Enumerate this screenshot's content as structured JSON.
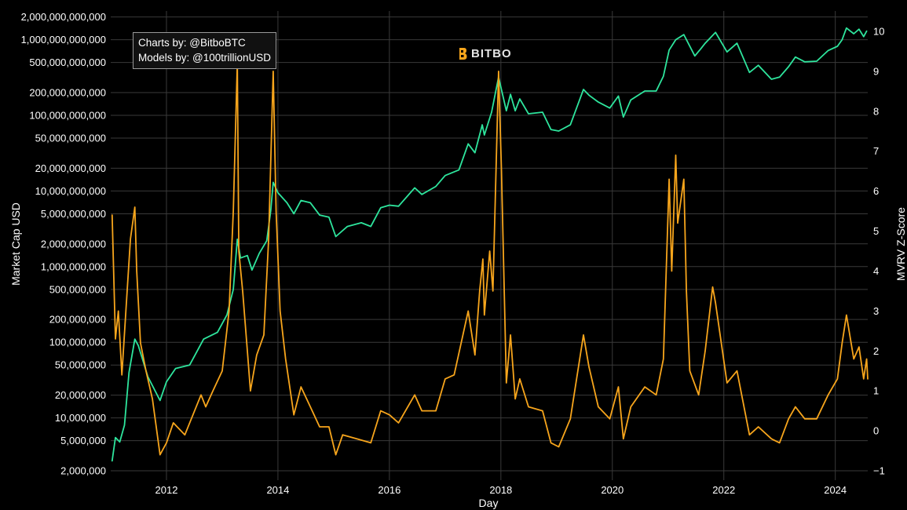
{
  "credits": {
    "line1": "Charts by: @BitboBTC",
    "line2": "Models by: @100trillionUSD"
  },
  "logo": {
    "text": "BITBO",
    "icon": "bitbo-logo-icon"
  },
  "colors": {
    "background": "#000000",
    "market_cap": "#2ee59d",
    "mvrv": "#f7a51c",
    "grid": "#3a3a3a"
  },
  "chart_data": {
    "type": "line",
    "xlabel": "Day",
    "ylabel": "Market Cap USD",
    "y2label": "MVRV Z-Score",
    "x_ticks": [
      "2012",
      "2014",
      "2016",
      "2018",
      "2020",
      "2022",
      "2024"
    ],
    "x_range": [
      "2011-01-01",
      "2024-08-01"
    ],
    "y_scale": "log",
    "y_range": [
      1500000,
      2400000000000
    ],
    "y_ticks": [
      2000000,
      5000000,
      10000000,
      20000000,
      50000000,
      100000000,
      200000000,
      500000000,
      1000000000,
      2000000000,
      5000000000,
      10000000000,
      20000000000,
      50000000000,
      100000000000,
      200000000000,
      500000000000,
      1000000000000,
      2000000000000
    ],
    "y_tick_labels": [
      "2,000,000",
      "5,000,000",
      "10,000,000",
      "20,000,000",
      "50,000,000",
      "100,000,000",
      "200,000,000",
      "500,000,000",
      "1,000,000,000",
      "2,000,000,000",
      "5,000,000,000",
      "10,000,000,000",
      "20,000,000,000",
      "50,000,000,000",
      "100,000,000,000",
      "200,000,000,000",
      "500,000,000,000",
      "1,000,000,000,000",
      "2,000,000,000,000"
    ],
    "y2_range": [
      -1.0,
      10.0
    ],
    "y2_ticks": [
      -1,
      0,
      1,
      2,
      3,
      4,
      5,
      6,
      7,
      8,
      9,
      10
    ],
    "grid": true,
    "series": [
      {
        "axis": "y",
        "color": "#2ee59d",
        "points": [
          [
            "2011-01-10",
            2700000
          ],
          [
            "2011-02-01",
            5500000
          ],
          [
            "2011-03-01",
            4800000
          ],
          [
            "2011-04-01",
            8000000
          ],
          [
            "2011-05-01",
            40000000
          ],
          [
            "2011-06-08",
            110000000
          ],
          [
            "2011-07-01",
            90000000
          ],
          [
            "2011-09-01",
            35000000
          ],
          [
            "2011-11-20",
            17000000
          ],
          [
            "2012-01-01",
            30000000
          ],
          [
            "2012-03-01",
            45000000
          ],
          [
            "2012-06-01",
            50000000
          ],
          [
            "2012-09-01",
            110000000
          ],
          [
            "2012-12-01",
            135000000
          ],
          [
            "2013-02-01",
            230000000
          ],
          [
            "2013-03-15",
            500000000
          ],
          [
            "2013-04-10",
            2300000000
          ],
          [
            "2013-05-01",
            1300000000
          ],
          [
            "2013-06-15",
            1400000000
          ],
          [
            "2013-07-15",
            900000000
          ],
          [
            "2013-09-01",
            1500000000
          ],
          [
            "2013-10-20",
            2200000000
          ],
          [
            "2013-11-15",
            5500000000
          ],
          [
            "2013-12-01",
            13000000000
          ],
          [
            "2014-01-01",
            9500000000
          ],
          [
            "2014-03-01",
            7000000000
          ],
          [
            "2014-04-15",
            5000000000
          ],
          [
            "2014-06-01",
            7500000000
          ],
          [
            "2014-08-01",
            7000000000
          ],
          [
            "2014-10-01",
            4800000000
          ],
          [
            "2014-12-01",
            4500000000
          ],
          [
            "2015-01-15",
            2500000000
          ],
          [
            "2015-04-01",
            3400000000
          ],
          [
            "2015-07-01",
            3800000000
          ],
          [
            "2015-09-01",
            3400000000
          ],
          [
            "2015-11-05",
            6000000000
          ],
          [
            "2016-01-01",
            6500000000
          ],
          [
            "2016-03-01",
            6300000000
          ],
          [
            "2016-06-15",
            11000000000
          ],
          [
            "2016-08-01",
            9000000000
          ],
          [
            "2016-11-01",
            11500000000
          ],
          [
            "2017-01-01",
            16000000000
          ],
          [
            "2017-04-01",
            19000000000
          ],
          [
            "2017-06-01",
            42000000000
          ],
          [
            "2017-07-15",
            32000000000
          ],
          [
            "2017-09-01",
            75000000000
          ],
          [
            "2017-09-15",
            55000000000
          ],
          [
            "2017-11-01",
            110000000000
          ],
          [
            "2017-12-17",
            320000000000
          ],
          [
            "2018-02-06",
            115000000000
          ],
          [
            "2018-03-05",
            190000000000
          ],
          [
            "2018-04-05",
            115000000000
          ],
          [
            "2018-05-05",
            165000000000
          ],
          [
            "2018-07-01",
            105000000000
          ],
          [
            "2018-10-01",
            110000000000
          ],
          [
            "2018-11-25",
            65000000000
          ],
          [
            "2019-01-15",
            62000000000
          ],
          [
            "2019-04-01",
            75000000000
          ],
          [
            "2019-06-26",
            220000000000
          ],
          [
            "2019-08-01",
            185000000000
          ],
          [
            "2019-10-01",
            150000000000
          ],
          [
            "2019-12-15",
            125000000000
          ],
          [
            "2020-02-10",
            180000000000
          ],
          [
            "2020-03-13",
            95000000000
          ],
          [
            "2020-05-01",
            160000000000
          ],
          [
            "2020-08-01",
            210000000000
          ],
          [
            "2020-10-15",
            210000000000
          ],
          [
            "2020-12-01",
            330000000000
          ],
          [
            "2021-01-08",
            730000000000
          ],
          [
            "2021-02-20",
            1000000000000
          ],
          [
            "2021-04-14",
            1170000000000
          ],
          [
            "2021-06-25",
            610000000000
          ],
          [
            "2021-08-01",
            750000000000
          ],
          [
            "2021-09-01",
            900000000000
          ],
          [
            "2021-11-08",
            1250000000000
          ],
          [
            "2022-01-22",
            690000000000
          ],
          [
            "2022-03-28",
            900000000000
          ],
          [
            "2022-06-18",
            370000000000
          ],
          [
            "2022-08-15",
            460000000000
          ],
          [
            "2022-11-09",
            300000000000
          ],
          [
            "2023-01-01",
            320000000000
          ],
          [
            "2023-03-01",
            440000000000
          ],
          [
            "2023-04-15",
            590000000000
          ],
          [
            "2023-06-15",
            510000000000
          ],
          [
            "2023-09-01",
            520000000000
          ],
          [
            "2023-11-15",
            720000000000
          ],
          [
            "2024-01-15",
            820000000000
          ],
          [
            "2024-02-15",
            1000000000000
          ],
          [
            "2024-03-14",
            1430000000000
          ],
          [
            "2024-05-01",
            1200000000000
          ],
          [
            "2024-06-05",
            1380000000000
          ],
          [
            "2024-07-05",
            1100000000000
          ],
          [
            "2024-07-25",
            1300000000000
          ]
        ]
      },
      {
        "axis": "y2",
        "color": "#f7a51c",
        "points": [
          [
            "2011-01-10",
            5.4
          ],
          [
            "2011-02-01",
            2.3
          ],
          [
            "2011-02-20",
            3.0
          ],
          [
            "2011-03-15",
            1.4
          ],
          [
            "2011-04-10",
            3.0
          ],
          [
            "2011-05-10",
            4.8
          ],
          [
            "2011-06-08",
            5.6
          ],
          [
            "2011-06-20",
            4.0
          ],
          [
            "2011-07-15",
            2.2
          ],
          [
            "2011-08-20",
            1.5
          ],
          [
            "2011-10-01",
            0.8
          ],
          [
            "2011-11-20",
            -0.6
          ],
          [
            "2012-01-01",
            -0.3
          ],
          [
            "2012-02-15",
            0.2
          ],
          [
            "2012-05-01",
            -0.1
          ],
          [
            "2012-08-15",
            0.9
          ],
          [
            "2012-09-15",
            0.6
          ],
          [
            "2012-11-01",
            1.0
          ],
          [
            "2013-01-01",
            1.5
          ],
          [
            "2013-02-15",
            3.0
          ],
          [
            "2013-03-15",
            5.5
          ],
          [
            "2013-04-10",
            9.2
          ],
          [
            "2013-04-20",
            4.5
          ],
          [
            "2013-05-15",
            3.5
          ],
          [
            "2013-06-15",
            2.0
          ],
          [
            "2013-07-05",
            1.0
          ],
          [
            "2013-08-15",
            1.9
          ],
          [
            "2013-10-01",
            2.4
          ],
          [
            "2013-11-01",
            4.8
          ],
          [
            "2013-12-01",
            9.0
          ],
          [
            "2013-12-20",
            5.5
          ],
          [
            "2014-01-15",
            3.0
          ],
          [
            "2014-02-20",
            1.8
          ],
          [
            "2014-04-15",
            0.4
          ],
          [
            "2014-06-01",
            1.1
          ],
          [
            "2014-08-01",
            0.6
          ],
          [
            "2014-10-01",
            0.1
          ],
          [
            "2014-12-01",
            0.1
          ],
          [
            "2015-01-15",
            -0.6
          ],
          [
            "2015-03-01",
            -0.1
          ],
          [
            "2015-06-01",
            -0.2
          ],
          [
            "2015-09-01",
            -0.3
          ],
          [
            "2015-11-05",
            0.5
          ],
          [
            "2016-01-01",
            0.4
          ],
          [
            "2016-03-01",
            0.2
          ],
          [
            "2016-06-15",
            0.9
          ],
          [
            "2016-08-01",
            0.5
          ],
          [
            "2016-11-01",
            0.5
          ],
          [
            "2017-01-01",
            1.3
          ],
          [
            "2017-03-01",
            1.4
          ],
          [
            "2017-06-01",
            3.0
          ],
          [
            "2017-07-15",
            1.9
          ],
          [
            "2017-08-15",
            3.5
          ],
          [
            "2017-09-05",
            4.3
          ],
          [
            "2017-09-15",
            2.9
          ],
          [
            "2017-10-20",
            4.5
          ],
          [
            "2017-11-10",
            3.5
          ],
          [
            "2017-12-17",
            9.0
          ],
          [
            "2018-01-05",
            6.5
          ],
          [
            "2018-02-06",
            1.2
          ],
          [
            "2018-03-05",
            2.4
          ],
          [
            "2018-04-05",
            0.8
          ],
          [
            "2018-05-05",
            1.3
          ],
          [
            "2018-07-01",
            0.6
          ],
          [
            "2018-10-01",
            0.5
          ],
          [
            "2018-11-25",
            -0.3
          ],
          [
            "2019-01-15",
            -0.4
          ],
          [
            "2019-04-01",
            0.3
          ],
          [
            "2019-06-26",
            2.4
          ],
          [
            "2019-08-01",
            1.6
          ],
          [
            "2019-10-01",
            0.6
          ],
          [
            "2019-12-15",
            0.3
          ],
          [
            "2020-02-10",
            1.1
          ],
          [
            "2020-03-13",
            -0.2
          ],
          [
            "2020-05-01",
            0.6
          ],
          [
            "2020-08-01",
            1.1
          ],
          [
            "2020-10-15",
            0.9
          ],
          [
            "2020-12-01",
            1.8
          ],
          [
            "2021-01-08",
            6.3
          ],
          [
            "2021-01-25",
            4.0
          ],
          [
            "2021-02-20",
            6.9
          ],
          [
            "2021-03-05",
            5.2
          ],
          [
            "2021-04-14",
            6.3
          ],
          [
            "2021-05-01",
            3.5
          ],
          [
            "2021-05-23",
            1.5
          ],
          [
            "2021-07-20",
            0.9
          ],
          [
            "2021-09-01",
            2.0
          ],
          [
            "2021-10-20",
            3.6
          ],
          [
            "2021-11-08",
            3.2
          ],
          [
            "2022-01-22",
            1.2
          ],
          [
            "2022-03-28",
            1.5
          ],
          [
            "2022-06-18",
            -0.1
          ],
          [
            "2022-08-15",
            0.1
          ],
          [
            "2022-11-09",
            -0.2
          ],
          [
            "2023-01-01",
            -0.3
          ],
          [
            "2023-03-01",
            0.3
          ],
          [
            "2023-04-15",
            0.6
          ],
          [
            "2023-06-15",
            0.3
          ],
          [
            "2023-09-01",
            0.3
          ],
          [
            "2023-11-15",
            0.9
          ],
          [
            "2024-01-15",
            1.3
          ],
          [
            "2024-02-15",
            2.2
          ],
          [
            "2024-03-14",
            2.9
          ],
          [
            "2024-05-01",
            1.8
          ],
          [
            "2024-06-05",
            2.1
          ],
          [
            "2024-07-05",
            1.3
          ],
          [
            "2024-07-25",
            1.8
          ],
          [
            "2024-08-01",
            1.3
          ]
        ]
      }
    ]
  }
}
